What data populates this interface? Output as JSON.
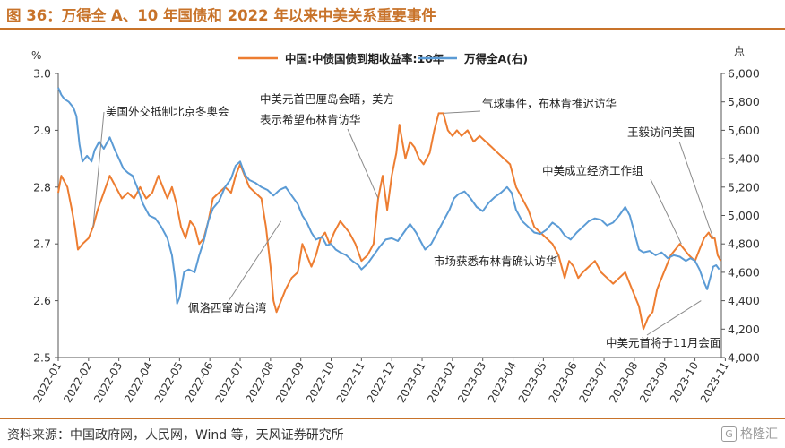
{
  "header": {
    "title": "图 36：万得全 A、10 年国债和 2022 年以来中美关系重要事件"
  },
  "footer": {
    "source": "资料来源：中国政府网，人民网，Wind 等，天风证券研究所",
    "watermark": "格隆汇",
    "watermark_mark": "G"
  },
  "chart_data": {
    "type": "line",
    "left_unit": "%",
    "right_unit": "点",
    "legend_position": "top",
    "grid": false,
    "x_labels": [
      "2022-01",
      "2022-02",
      "2022-03",
      "2022-04",
      "2022-05",
      "2022-06",
      "2022-07",
      "2022-08",
      "2022-09",
      "2022-10",
      "2022-11",
      "2022-12",
      "2023-01",
      "2023-02",
      "2023-03",
      "2023-04",
      "2023-05",
      "2023-06",
      "2023-07",
      "2023-08",
      "2023-09",
      "2023-10",
      "2023-11"
    ],
    "left_axis": {
      "ticks": [
        "2.5",
        "2.6",
        "2.7",
        "2.8",
        "2.9",
        "3.0"
      ],
      "range": [
        2.5,
        3.0
      ]
    },
    "right_axis": {
      "ticks": [
        "4,000",
        "4,200",
        "4,400",
        "4,600",
        "4,800",
        "5,000",
        "5,200",
        "5,400",
        "5,600",
        "5,800",
        "6,000"
      ],
      "range": [
        4000,
        6000
      ]
    },
    "series": [
      {
        "name": "中国:中债国债到期收益率:10年",
        "axis": "left",
        "color": "#ED7D31",
        "points": [
          [
            0.0,
            2.79
          ],
          [
            0.1,
            2.82
          ],
          [
            0.3,
            2.8
          ],
          [
            0.45,
            2.76
          ],
          [
            0.55,
            2.73
          ],
          [
            0.65,
            2.69
          ],
          [
            0.8,
            2.7
          ],
          [
            1.0,
            2.71
          ],
          [
            1.15,
            2.73
          ],
          [
            1.3,
            2.76
          ],
          [
            1.5,
            2.79
          ],
          [
            1.7,
            2.82
          ],
          [
            1.9,
            2.8
          ],
          [
            2.1,
            2.78
          ],
          [
            2.3,
            2.79
          ],
          [
            2.5,
            2.78
          ],
          [
            2.7,
            2.8
          ],
          [
            2.9,
            2.78
          ],
          [
            3.1,
            2.79
          ],
          [
            3.3,
            2.82
          ],
          [
            3.45,
            2.8
          ],
          [
            3.6,
            2.78
          ],
          [
            3.75,
            2.8
          ],
          [
            3.9,
            2.77
          ],
          [
            4.05,
            2.73
          ],
          [
            4.2,
            2.71
          ],
          [
            4.35,
            2.74
          ],
          [
            4.5,
            2.73
          ],
          [
            4.65,
            2.7
          ],
          [
            4.8,
            2.71
          ],
          [
            4.95,
            2.74
          ],
          [
            5.1,
            2.78
          ],
          [
            5.3,
            2.79
          ],
          [
            5.5,
            2.8
          ],
          [
            5.7,
            2.79
          ],
          [
            5.85,
            2.82
          ],
          [
            6.0,
            2.84
          ],
          [
            6.15,
            2.82
          ],
          [
            6.3,
            2.8
          ],
          [
            6.5,
            2.79
          ],
          [
            6.7,
            2.78
          ],
          [
            6.85,
            2.73
          ],
          [
            7.0,
            2.66
          ],
          [
            7.1,
            2.6
          ],
          [
            7.2,
            2.58
          ],
          [
            7.35,
            2.6
          ],
          [
            7.5,
            2.62
          ],
          [
            7.7,
            2.64
          ],
          [
            7.9,
            2.65
          ],
          [
            8.05,
            2.7
          ],
          [
            8.2,
            2.68
          ],
          [
            8.35,
            2.66
          ],
          [
            8.5,
            2.68
          ],
          [
            8.65,
            2.71
          ],
          [
            8.8,
            2.72
          ],
          [
            8.95,
            2.7
          ],
          [
            9.1,
            2.72
          ],
          [
            9.3,
            2.74
          ],
          [
            9.45,
            2.73
          ],
          [
            9.6,
            2.72
          ],
          [
            9.8,
            2.7
          ],
          [
            10.0,
            2.67
          ],
          [
            10.2,
            2.68
          ],
          [
            10.4,
            2.7
          ],
          [
            10.55,
            2.78
          ],
          [
            10.7,
            2.82
          ],
          [
            10.85,
            2.76
          ],
          [
            11.0,
            2.82
          ],
          [
            11.15,
            2.86
          ],
          [
            11.25,
            2.91
          ],
          [
            11.35,
            2.88
          ],
          [
            11.45,
            2.85
          ],
          [
            11.6,
            2.88
          ],
          [
            11.75,
            2.87
          ],
          [
            11.9,
            2.85
          ],
          [
            12.05,
            2.84
          ],
          [
            12.25,
            2.86
          ],
          [
            12.4,
            2.9
          ],
          [
            12.55,
            2.93
          ],
          [
            12.7,
            2.93
          ],
          [
            12.85,
            2.9
          ],
          [
            13.0,
            2.89
          ],
          [
            13.15,
            2.9
          ],
          [
            13.3,
            2.89
          ],
          [
            13.5,
            2.9
          ],
          [
            13.7,
            2.88
          ],
          [
            13.9,
            2.89
          ],
          [
            14.1,
            2.88
          ],
          [
            14.3,
            2.87
          ],
          [
            14.5,
            2.86
          ],
          [
            14.7,
            2.85
          ],
          [
            14.9,
            2.84
          ],
          [
            15.1,
            2.8
          ],
          [
            15.3,
            2.78
          ],
          [
            15.5,
            2.76
          ],
          [
            15.7,
            2.73
          ],
          [
            15.9,
            2.72
          ],
          [
            16.1,
            2.71
          ],
          [
            16.3,
            2.7
          ],
          [
            16.5,
            2.68
          ],
          [
            16.7,
            2.64
          ],
          [
            16.85,
            2.67
          ],
          [
            17.0,
            2.66
          ],
          [
            17.15,
            2.64
          ],
          [
            17.3,
            2.65
          ],
          [
            17.5,
            2.66
          ],
          [
            17.7,
            2.67
          ],
          [
            17.9,
            2.65
          ],
          [
            18.1,
            2.64
          ],
          [
            18.3,
            2.63
          ],
          [
            18.5,
            2.64
          ],
          [
            18.7,
            2.65
          ],
          [
            18.85,
            2.63
          ],
          [
            19.0,
            2.61
          ],
          [
            19.15,
            2.59
          ],
          [
            19.3,
            2.55
          ],
          [
            19.45,
            2.57
          ],
          [
            19.6,
            2.58
          ],
          [
            19.75,
            2.62
          ],
          [
            19.9,
            2.64
          ],
          [
            20.05,
            2.66
          ],
          [
            20.2,
            2.68
          ],
          [
            20.35,
            2.69
          ],
          [
            20.5,
            2.7
          ],
          [
            20.65,
            2.69
          ],
          [
            20.8,
            2.68
          ],
          [
            21.0,
            2.67
          ],
          [
            21.15,
            2.69
          ],
          [
            21.3,
            2.71
          ],
          [
            21.45,
            2.72
          ],
          [
            21.55,
            2.71
          ],
          [
            21.65,
            2.71
          ],
          [
            21.75,
            2.68
          ],
          [
            21.85,
            2.67
          ]
        ]
      },
      {
        "name": "万得全A(右)",
        "axis": "right",
        "color": "#5B9BD5",
        "points": [
          [
            0.0,
            5900
          ],
          [
            0.1,
            5850
          ],
          [
            0.2,
            5820
          ],
          [
            0.35,
            5800
          ],
          [
            0.5,
            5760
          ],
          [
            0.6,
            5700
          ],
          [
            0.7,
            5500
          ],
          [
            0.8,
            5380
          ],
          [
            0.95,
            5420
          ],
          [
            1.1,
            5380
          ],
          [
            1.2,
            5460
          ],
          [
            1.35,
            5520
          ],
          [
            1.5,
            5470
          ],
          [
            1.7,
            5550
          ],
          [
            1.85,
            5470
          ],
          [
            2.0,
            5400
          ],
          [
            2.15,
            5330
          ],
          [
            2.3,
            5300
          ],
          [
            2.45,
            5280
          ],
          [
            2.6,
            5200
          ],
          [
            2.8,
            5080
          ],
          [
            3.0,
            5000
          ],
          [
            3.2,
            4980
          ],
          [
            3.4,
            4920
          ],
          [
            3.6,
            4840
          ],
          [
            3.75,
            4720
          ],
          [
            3.85,
            4560
          ],
          [
            3.92,
            4380
          ],
          [
            4.0,
            4420
          ],
          [
            4.15,
            4600
          ],
          [
            4.3,
            4620
          ],
          [
            4.5,
            4600
          ],
          [
            4.65,
            4720
          ],
          [
            4.8,
            4820
          ],
          [
            4.95,
            4960
          ],
          [
            5.1,
            5050
          ],
          [
            5.3,
            5100
          ],
          [
            5.5,
            5200
          ],
          [
            5.7,
            5260
          ],
          [
            5.85,
            5350
          ],
          [
            6.0,
            5380
          ],
          [
            6.15,
            5290
          ],
          [
            6.3,
            5250
          ],
          [
            6.5,
            5230
          ],
          [
            6.7,
            5200
          ],
          [
            6.9,
            5180
          ],
          [
            7.1,
            5140
          ],
          [
            7.3,
            5180
          ],
          [
            7.5,
            5200
          ],
          [
            7.7,
            5140
          ],
          [
            7.9,
            5080
          ],
          [
            8.05,
            5000
          ],
          [
            8.2,
            4950
          ],
          [
            8.35,
            4880
          ],
          [
            8.5,
            4830
          ],
          [
            8.7,
            4850
          ],
          [
            8.85,
            4790
          ],
          [
            9.0,
            4800
          ],
          [
            9.15,
            4760
          ],
          [
            9.3,
            4740
          ],
          [
            9.5,
            4720
          ],
          [
            9.7,
            4680
          ],
          [
            9.9,
            4650
          ],
          [
            10.0,
            4620
          ],
          [
            10.2,
            4660
          ],
          [
            10.4,
            4720
          ],
          [
            10.6,
            4780
          ],
          [
            10.8,
            4830
          ],
          [
            11.0,
            4840
          ],
          [
            11.2,
            4820
          ],
          [
            11.4,
            4880
          ],
          [
            11.6,
            4940
          ],
          [
            11.8,
            4880
          ],
          [
            11.95,
            4820
          ],
          [
            12.1,
            4760
          ],
          [
            12.3,
            4800
          ],
          [
            12.5,
            4880
          ],
          [
            12.7,
            4960
          ],
          [
            12.9,
            5040
          ],
          [
            13.05,
            5120
          ],
          [
            13.2,
            5150
          ],
          [
            13.4,
            5170
          ],
          [
            13.6,
            5120
          ],
          [
            13.8,
            5060
          ],
          [
            14.0,
            5030
          ],
          [
            14.2,
            5090
          ],
          [
            14.4,
            5130
          ],
          [
            14.6,
            5160
          ],
          [
            14.8,
            5200
          ],
          [
            14.95,
            5160
          ],
          [
            15.1,
            5040
          ],
          [
            15.3,
            4960
          ],
          [
            15.5,
            4920
          ],
          [
            15.7,
            4880
          ],
          [
            15.9,
            4870
          ],
          [
            16.1,
            4900
          ],
          [
            16.3,
            4950
          ],
          [
            16.5,
            4920
          ],
          [
            16.7,
            4860
          ],
          [
            16.9,
            4830
          ],
          [
            17.1,
            4880
          ],
          [
            17.3,
            4920
          ],
          [
            17.5,
            4960
          ],
          [
            17.7,
            4980
          ],
          [
            17.9,
            4970
          ],
          [
            18.1,
            4930
          ],
          [
            18.3,
            4950
          ],
          [
            18.5,
            5000
          ],
          [
            18.7,
            5060
          ],
          [
            18.85,
            5000
          ],
          [
            19.0,
            4880
          ],
          [
            19.15,
            4760
          ],
          [
            19.3,
            4740
          ],
          [
            19.5,
            4750
          ],
          [
            19.7,
            4720
          ],
          [
            19.9,
            4740
          ],
          [
            20.1,
            4700
          ],
          [
            20.3,
            4720
          ],
          [
            20.5,
            4710
          ],
          [
            20.7,
            4680
          ],
          [
            20.85,
            4700
          ],
          [
            21.0,
            4680
          ],
          [
            21.15,
            4620
          ],
          [
            21.3,
            4530
          ],
          [
            21.4,
            4480
          ],
          [
            21.5,
            4560
          ],
          [
            21.6,
            4640
          ],
          [
            21.7,
            4650
          ],
          [
            21.8,
            4620
          ]
        ]
      }
    ],
    "annotations": [
      {
        "text": "美国外交抵制北京冬奥会",
        "x": 1.15,
        "value": 2.73,
        "axis": "left"
      },
      {
        "text": "中美元首巴厘岛会晤，美方",
        "text2": "表示希望布林肯访华",
        "x": 10.55,
        "value": 2.78,
        "axis": "left"
      },
      {
        "text": "气球事件，布林肯推迟访华",
        "x": 12.7,
        "value": 2.93,
        "axis": "left"
      },
      {
        "text": "王毅访问美国",
        "x": 21.6,
        "value": 2.71,
        "axis": "left"
      },
      {
        "text": "中美成立经济工作组",
        "x": 20.55,
        "value": 2.7,
        "axis": "left"
      },
      {
        "text": "佩洛西窜访台湾",
        "x": 7.35,
        "value": 2.74,
        "axis": "left"
      },
      {
        "text": "市场获悉布林肯确认访华",
        "x": 16.5,
        "value": 2.68,
        "axis": "left"
      },
      {
        "text": "中美元首将于11月会面",
        "x": 21.2,
        "value": 2.6,
        "axis": "left"
      }
    ]
  }
}
